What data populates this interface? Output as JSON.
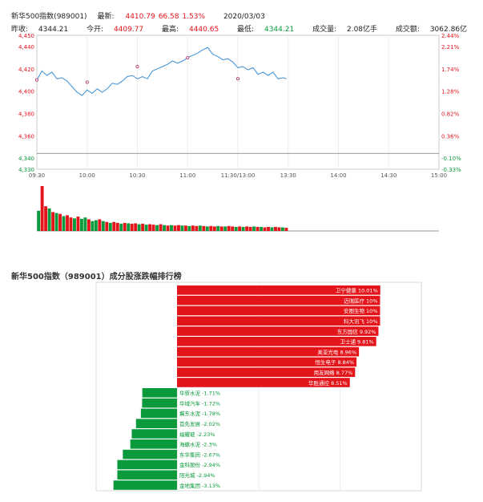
{
  "header": {
    "row1": {
      "index_name": "新华500指数(989001)",
      "latest_label": "最新:",
      "latest_value": "4410.79",
      "change": "66.58",
      "change_pct": "1.53%",
      "date": "2020/03/03"
    },
    "row2": {
      "prev_close_label": "昨收:",
      "prev_close": "4344.21",
      "open_label": "今开:",
      "open": "4409.77",
      "high_label": "最高:",
      "high": "4440.65",
      "low_label": "最低:",
      "low": "4344.21",
      "volume_label": "成交量:",
      "volume": "2.08亿手",
      "turnover_label": "成交额:",
      "turnover": "3062.86亿"
    }
  },
  "section_title": "新华500指数（989001）成分股涨跌幅排行榜",
  "colors": {
    "up": "#e3151b",
    "down": "#0a9a3c",
    "line": "#3a8fd6"
  },
  "chart_data": [
    {
      "type": "line",
      "ylim": [
        4330,
        4450
      ],
      "prev_close": 4344.21,
      "y_ticks_left": [
        "4,450",
        "4,440",
        "4,420",
        "4,400",
        "4,380",
        "4,360",
        "4,340",
        "4,330"
      ],
      "y_ticks_right": [
        "2.44%",
        "2.21%",
        "1.74%",
        "1.28%",
        "0.82%",
        "0.36%",
        "-0.10%",
        "-0.33%"
      ],
      "x_ticks": [
        "09:30",
        "10:00",
        "10:30",
        "11:00",
        "11:30/13:00",
        "13:30",
        "14:00",
        "14:30",
        "15:00"
      ],
      "series": [
        {
          "points": [
            [
              0,
              4410
            ],
            [
              3,
              4418
            ],
            [
              6,
              4414
            ],
            [
              9,
              4417
            ],
            [
              12,
              4411
            ],
            [
              15,
              4412
            ],
            [
              18,
              4409
            ],
            [
              21,
              4404
            ],
            [
              24,
              4399
            ],
            [
              27,
              4396
            ],
            [
              30,
              4401
            ],
            [
              33,
              4398
            ],
            [
              36,
              4402
            ],
            [
              39,
              4399
            ],
            [
              42,
              4402
            ],
            [
              45,
              4407
            ],
            [
              48,
              4406
            ],
            [
              51,
              4409
            ],
            [
              54,
              4413
            ],
            [
              57,
              4414
            ],
            [
              60,
              4411
            ],
            [
              63,
              4413
            ],
            [
              66,
              4411
            ],
            [
              69,
              4418
            ],
            [
              72,
              4420
            ],
            [
              75,
              4422
            ],
            [
              78,
              4424
            ],
            [
              81,
              4427
            ],
            [
              84,
              4425
            ],
            [
              87,
              4427
            ],
            [
              90,
              4430
            ],
            [
              93,
              4432
            ],
            [
              96,
              4434
            ],
            [
              99,
              4437
            ],
            [
              102,
              4439
            ],
            [
              105,
              4433
            ],
            [
              108,
              4431
            ],
            [
              111,
              4428
            ],
            [
              114,
              4429
            ],
            [
              117,
              4426
            ],
            [
              120,
              4421
            ],
            [
              123,
              4422
            ],
            [
              126,
              4419
            ],
            [
              129,
              4421
            ],
            [
              132,
              4415
            ],
            [
              135,
              4417
            ],
            [
              138,
              4414
            ],
            [
              141,
              4417
            ],
            [
              144,
              4411
            ],
            [
              147,
              4412
            ],
            [
              149,
              4411
            ]
          ]
        }
      ],
      "markers": [
        [
          0,
          4410
        ],
        [
          30,
          4408
        ],
        [
          60,
          4422
        ],
        [
          90,
          4430
        ],
        [
          120,
          4411
        ]
      ]
    },
    {
      "type": "bar",
      "volume_bars": [
        {
          "v": 0.45,
          "c": "down"
        },
        {
          "v": 1.0,
          "c": "up"
        },
        {
          "v": 0.55,
          "c": "up"
        },
        {
          "v": 0.5,
          "c": "down"
        },
        {
          "v": 0.42,
          "c": "up"
        },
        {
          "v": 0.4,
          "c": "down"
        },
        {
          "v": 0.38,
          "c": "up"
        },
        {
          "v": 0.33,
          "c": "down"
        },
        {
          "v": 0.35,
          "c": "up"
        },
        {
          "v": 0.3,
          "c": "up"
        },
        {
          "v": 0.28,
          "c": "down"
        },
        {
          "v": 0.32,
          "c": "up"
        },
        {
          "v": 0.27,
          "c": "down"
        },
        {
          "v": 0.3,
          "c": "down"
        },
        {
          "v": 0.26,
          "c": "up"
        },
        {
          "v": 0.22,
          "c": "down"
        },
        {
          "v": 0.24,
          "c": "down"
        },
        {
          "v": 0.26,
          "c": "up"
        },
        {
          "v": 0.22,
          "c": "down"
        },
        {
          "v": 0.2,
          "c": "up"
        },
        {
          "v": 0.18,
          "c": "down"
        },
        {
          "v": 0.2,
          "c": "up"
        },
        {
          "v": 0.18,
          "c": "up"
        },
        {
          "v": 0.16,
          "c": "down"
        },
        {
          "v": 0.18,
          "c": "up"
        },
        {
          "v": 0.17,
          "c": "down"
        },
        {
          "v": 0.16,
          "c": "up"
        },
        {
          "v": 0.17,
          "c": "up"
        },
        {
          "v": 0.15,
          "c": "down"
        },
        {
          "v": 0.16,
          "c": "up"
        },
        {
          "v": 0.14,
          "c": "down"
        },
        {
          "v": 0.15,
          "c": "up"
        },
        {
          "v": 0.14,
          "c": "up"
        },
        {
          "v": 0.13,
          "c": "down"
        },
        {
          "v": 0.15,
          "c": "up"
        },
        {
          "v": 0.13,
          "c": "down"
        },
        {
          "v": 0.12,
          "c": "up"
        },
        {
          "v": 0.13,
          "c": "down"
        },
        {
          "v": 0.12,
          "c": "up"
        },
        {
          "v": 0.13,
          "c": "up"
        },
        {
          "v": 0.12,
          "c": "down"
        },
        {
          "v": 0.12,
          "c": "up"
        },
        {
          "v": 0.11,
          "c": "down"
        },
        {
          "v": 0.12,
          "c": "up"
        },
        {
          "v": 0.11,
          "c": "up"
        },
        {
          "v": 0.12,
          "c": "down"
        },
        {
          "v": 0.11,
          "c": "up"
        },
        {
          "v": 0.1,
          "c": "down"
        },
        {
          "v": 0.11,
          "c": "up"
        },
        {
          "v": 0.1,
          "c": "up"
        },
        {
          "v": 0.11,
          "c": "down"
        },
        {
          "v": 0.1,
          "c": "up"
        },
        {
          "v": 0.1,
          "c": "down"
        },
        {
          "v": 0.11,
          "c": "up"
        },
        {
          "v": 0.1,
          "c": "up"
        },
        {
          "v": 0.09,
          "c": "down"
        },
        {
          "v": 0.1,
          "c": "up"
        },
        {
          "v": 0.09,
          "c": "down"
        },
        {
          "v": 0.1,
          "c": "up"
        },
        {
          "v": 0.09,
          "c": "up"
        },
        {
          "v": 0.1,
          "c": "down"
        },
        {
          "v": 0.09,
          "c": "up"
        },
        {
          "v": 0.09,
          "c": "down"
        },
        {
          "v": 0.08,
          "c": "up"
        },
        {
          "v": 0.09,
          "c": "up"
        },
        {
          "v": 0.08,
          "c": "down"
        },
        {
          "v": 0.09,
          "c": "up"
        },
        {
          "v": 0.08,
          "c": "up"
        },
        {
          "v": 0.08,
          "c": "down"
        },
        {
          "v": 0.07,
          "c": "up"
        }
      ]
    },
    {
      "type": "bar",
      "xlim": [
        -3.5,
        10.5
      ],
      "gainers": [
        {
          "name": "卫宁健康",
          "value": 10.01,
          "label": "10.01%"
        },
        {
          "name": "迈瑞医疗",
          "value": 10.0,
          "label": "10%"
        },
        {
          "name": "安图生物",
          "value": 10.0,
          "label": "10%"
        },
        {
          "name": "科大讯飞",
          "value": 10.0,
          "label": "10%"
        },
        {
          "name": "东方国信",
          "value": 9.92,
          "label": "9.92%"
        },
        {
          "name": "卫士通",
          "value": 9.81,
          "label": "9.81%"
        },
        {
          "name": "美亚光电",
          "value": 8.96,
          "label": "8.96%"
        },
        {
          "name": "恒生电子",
          "value": 8.84,
          "label": "8.84%"
        },
        {
          "name": "用友网络",
          "value": 8.77,
          "label": "8.77%"
        },
        {
          "name": "华胜通控",
          "value": 8.51,
          "label": "8.51%"
        }
      ],
      "losers": [
        {
          "name": "华新水泥",
          "value": -1.71,
          "label": "-1.71%"
        },
        {
          "name": "华域汽车",
          "value": -1.72,
          "label": "-1.72%"
        },
        {
          "name": "冀东水泥",
          "value": -1.78,
          "label": "-1.78%"
        },
        {
          "name": "首先发展",
          "value": -2.02,
          "label": "-2.02%"
        },
        {
          "name": "福耀玻",
          "value": -2.23,
          "label": "-2.23%"
        },
        {
          "name": "海螺水泥",
          "value": -2.3,
          "label": "-2.3%"
        },
        {
          "name": "东华集团",
          "value": -2.67,
          "label": "-2.67%"
        },
        {
          "name": "金科股份",
          "value": -2.94,
          "label": "-2.94%"
        },
        {
          "name": "阳光城",
          "value": -2.94,
          "label": "-2.94%"
        },
        {
          "name": "金地集团",
          "value": -3.13,
          "label": "-3.13%"
        }
      ]
    }
  ]
}
